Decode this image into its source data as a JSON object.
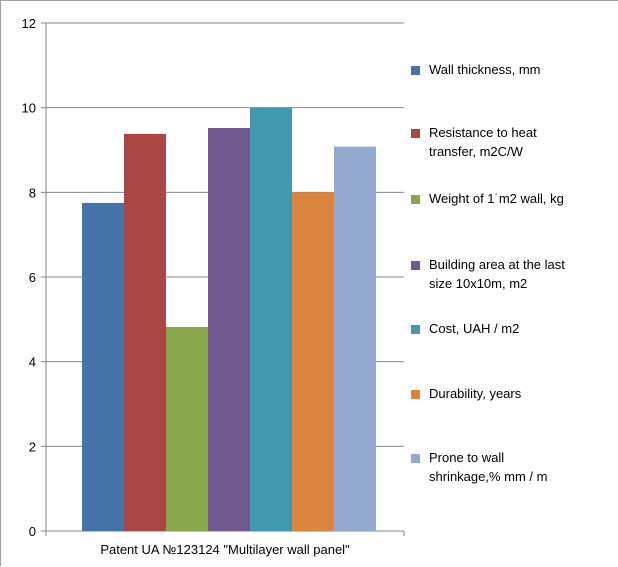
{
  "chart_data": {
    "type": "bar",
    "categories": [
      "Patent UA №123124 \"Multilayer wall panel\""
    ],
    "series": [
      {
        "name": "Wall thickness, mm",
        "color": "#4572a7",
        "values": [
          7.75
        ]
      },
      {
        "name": "Resistance to heat transfer, m2C/W",
        "color": "#aa4643",
        "values": [
          9.38
        ]
      },
      {
        "name": "Weight of 1˙m2 wall, kg",
        "color": "#89a54e",
        "values": [
          4.82
        ]
      },
      {
        "name": "Building area at the last size 10x10m, m2",
        "color": "#71588f",
        "values": [
          9.52
        ]
      },
      {
        "name": "Cost, UAH / m2",
        "color": "#4198af",
        "values": [
          10.0
        ]
      },
      {
        "name": "Durability, years",
        "color": "#db843d",
        "values": [
          8.0
        ]
      },
      {
        "name": "Prone to wall shrinkage,% mm / m",
        "color": "#93a9cf",
        "values": [
          9.08
        ]
      }
    ],
    "ylim": [
      0,
      12
    ],
    "y_ticks": [
      "0",
      "2",
      "4",
      "6",
      "8",
      "10",
      "12"
    ],
    "grid": "horizontal",
    "legend_position": "right"
  }
}
